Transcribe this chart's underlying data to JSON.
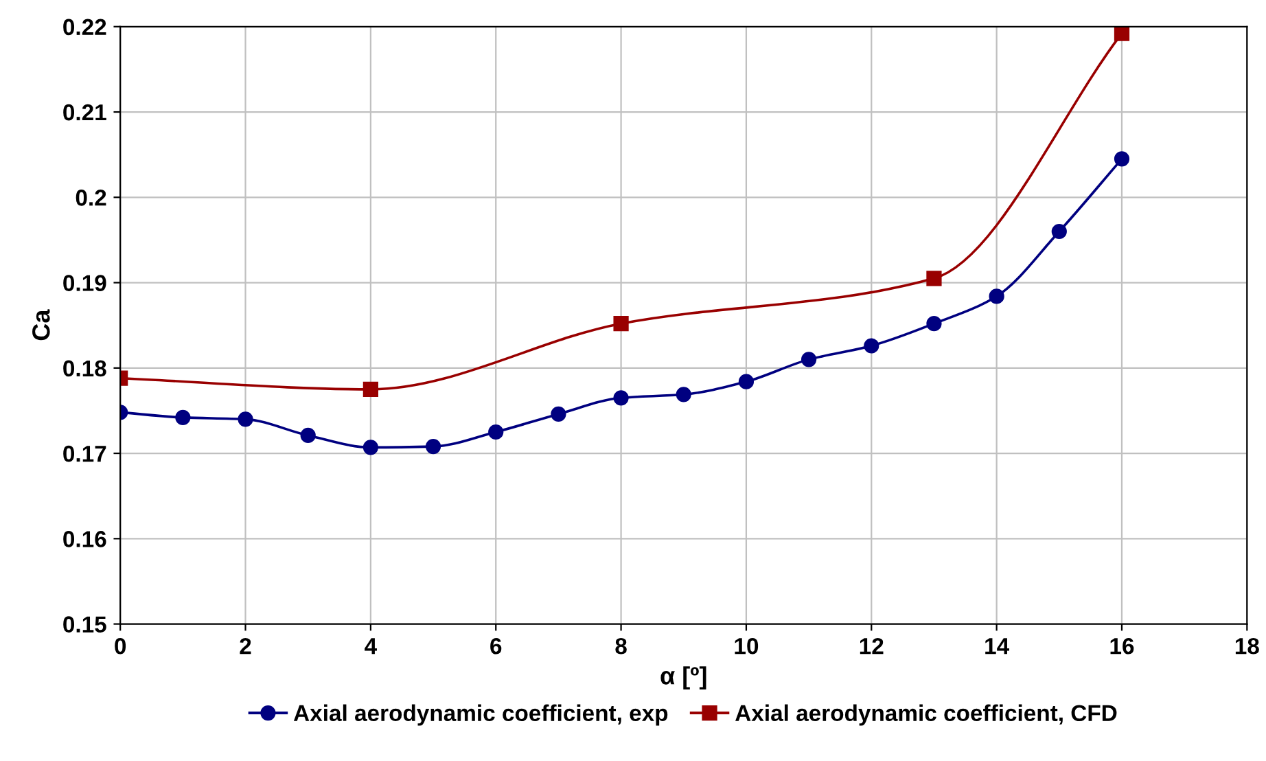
{
  "chart_data": {
    "type": "line",
    "xlabel": "α [º]",
    "ylabel": "Ca",
    "xlim": [
      0,
      18
    ],
    "xticks": [
      0,
      2,
      4,
      6,
      8,
      10,
      12,
      14,
      16,
      18
    ],
    "ylim": [
      0.15,
      0.22
    ],
    "yticks": [
      0.15,
      0.16,
      0.17,
      0.18,
      0.19,
      0.2,
      0.21,
      0.22
    ],
    "grid": true,
    "legend": "bottom",
    "line_style": "solid",
    "series": [
      {
        "name": "Axial aerodynamic coefficient, exp",
        "color": "#000080",
        "marker": "circle",
        "x": [
          0,
          1,
          2,
          3,
          4,
          5,
          6,
          7,
          8,
          9,
          10,
          11,
          12,
          13,
          14,
          15,
          16
        ],
        "values": [
          0.1748,
          0.1742,
          0.174,
          0.1721,
          0.1707,
          0.1708,
          0.1725,
          0.1746,
          0.1765,
          0.1769,
          0.1784,
          0.181,
          0.1826,
          0.1852,
          0.1884,
          0.196,
          0.2045
        ]
      },
      {
        "name": "Axial aerodynamic coefficient, CFD",
        "color": "#990000",
        "marker": "square",
        "x": [
          0,
          4,
          8,
          13,
          16
        ],
        "values": [
          0.1788,
          0.1775,
          0.1852,
          0.1905,
          0.2192
        ]
      }
    ]
  }
}
